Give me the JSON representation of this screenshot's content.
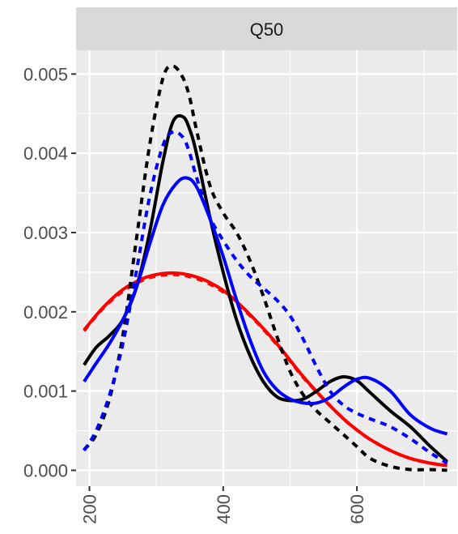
{
  "chart_data": {
    "type": "line",
    "facet_label": "Q50",
    "xlabel": "",
    "ylabel": "",
    "xlim": [
      180,
      750
    ],
    "ylim": [
      -0.0002,
      0.0053
    ],
    "x_ticks": [
      200,
      400,
      600
    ],
    "x_minor_ticks": [
      300,
      500,
      700
    ],
    "y_ticks": [
      0.0,
      0.001,
      0.002,
      0.003,
      0.004,
      0.005
    ],
    "y_tick_labels": [
      "0.000",
      "0.001",
      "0.002",
      "0.003",
      "0.004",
      "0.005"
    ],
    "x_tick_labels": [
      "200",
      "400",
      "600"
    ],
    "grid": true,
    "legend": "none",
    "series": [
      {
        "color": "#ff0000",
        "dash": "solid",
        "x": [
          192,
          220,
          250,
          280,
          300,
          320,
          340,
          360,
          380,
          400,
          420,
          450,
          480,
          500,
          520,
          550,
          580,
          600,
          620,
          650,
          680,
          710,
          735
        ],
        "y": [
          0.00177,
          0.00205,
          0.00228,
          0.00242,
          0.00247,
          0.00249,
          0.00248,
          0.00244,
          0.00237,
          0.00227,
          0.00213,
          0.00188,
          0.0016,
          0.00139,
          0.00118,
          0.0009,
          0.00065,
          0.00051,
          0.00039,
          0.00025,
          0.00015,
          9e-05,
          6e-05
        ]
      },
      {
        "color": "#ff0000",
        "dash": "dashed",
        "x": [
          192,
          220,
          250,
          280,
          300,
          320,
          340,
          360,
          380,
          400,
          420,
          450,
          480,
          500,
          520,
          550,
          580,
          600,
          620,
          650,
          680,
          710,
          735
        ],
        "y": [
          0.00176,
          0.00204,
          0.00226,
          0.0024,
          0.00245,
          0.00247,
          0.00246,
          0.00242,
          0.00235,
          0.00225,
          0.00211,
          0.00187,
          0.00159,
          0.00138,
          0.00117,
          0.0009,
          0.00065,
          0.00051,
          0.00039,
          0.00025,
          0.00015,
          9e-05,
          6e-05
        ]
      },
      {
        "color": "#000000",
        "dash": "solid",
        "x": [
          192,
          210,
          230,
          250,
          270,
          290,
          310,
          325,
          340,
          350,
          360,
          380,
          400,
          420,
          440,
          460,
          480,
          500,
          520,
          540,
          560,
          580,
          600,
          620,
          650,
          680,
          710,
          735
        ],
        "y": [
          0.00133,
          0.00155,
          0.0017,
          0.0019,
          0.0023,
          0.003,
          0.0039,
          0.0044,
          0.00446,
          0.0043,
          0.004,
          0.0032,
          0.0025,
          0.0019,
          0.00145,
          0.00112,
          0.00093,
          0.00088,
          0.0009,
          0.001,
          0.00112,
          0.00118,
          0.00113,
          0.00098,
          0.00075,
          0.00055,
          0.0003,
          0.00011
        ]
      },
      {
        "color": "#000000",
        "dash": "dashed",
        "x": [
          192,
          210,
          230,
          250,
          270,
          290,
          310,
          325,
          340,
          350,
          360,
          380,
          400,
          420,
          440,
          460,
          480,
          500,
          520,
          540,
          560,
          580,
          600,
          620,
          650,
          680,
          710,
          735
        ],
        "y": [
          0.00026,
          0.00045,
          0.0009,
          0.0017,
          0.0029,
          0.0041,
          0.00495,
          0.0051,
          0.00495,
          0.0047,
          0.0043,
          0.0036,
          0.00325,
          0.003,
          0.00265,
          0.0022,
          0.0017,
          0.00125,
          0.00095,
          0.00075,
          0.0006,
          0.00045,
          0.0003,
          0.00015,
          5e-05,
          1e-05,
          1e-05,
          0.0
        ]
      },
      {
        "color": "#0000ff",
        "dash": "solid",
        "x": [
          192,
          210,
          230,
          250,
          270,
          290,
          310,
          330,
          345,
          360,
          380,
          400,
          420,
          440,
          460,
          480,
          500,
          520,
          540,
          560,
          580,
          600,
          620,
          650,
          680,
          710,
          735
        ],
        "y": [
          0.00112,
          0.00135,
          0.0016,
          0.0019,
          0.0023,
          0.00285,
          0.00335,
          0.00362,
          0.00369,
          0.00358,
          0.00318,
          0.0027,
          0.00215,
          0.00165,
          0.00125,
          0.00102,
          0.0009,
          0.00085,
          0.00085,
          0.00092,
          0.00105,
          0.00115,
          0.00116,
          0.001,
          0.0007,
          0.00053,
          0.00046
        ]
      },
      {
        "color": "#0000ff",
        "dash": "dashed",
        "x": [
          192,
          210,
          230,
          250,
          270,
          290,
          310,
          325,
          340,
          350,
          360,
          380,
          400,
          420,
          440,
          460,
          480,
          500,
          520,
          540,
          560,
          580,
          600,
          620,
          650,
          680,
          710,
          735
        ],
        "y": [
          0.00025,
          0.0005,
          0.00095,
          0.0016,
          0.0025,
          0.00345,
          0.0041,
          0.00427,
          0.0042,
          0.004,
          0.0037,
          0.0032,
          0.0029,
          0.00265,
          0.00245,
          0.0023,
          0.00215,
          0.00195,
          0.00165,
          0.0013,
          0.001,
          0.00082,
          0.00072,
          0.00065,
          0.00055,
          0.0004,
          0.00022,
          9e-05
        ]
      }
    ]
  }
}
